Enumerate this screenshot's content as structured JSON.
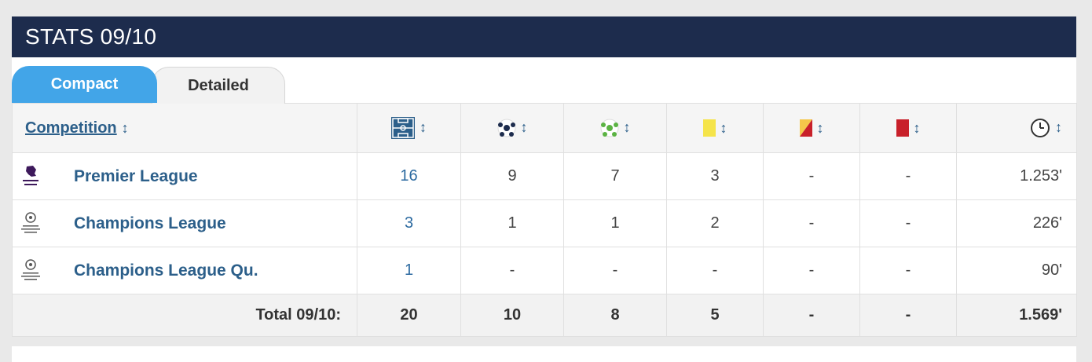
{
  "header": {
    "title": "STATS 09/10"
  },
  "tabs": {
    "compact": "Compact",
    "detailed": "Detailed"
  },
  "columns": {
    "competition": "Competition",
    "icons": [
      "pitch-icon",
      "goal-ball-icon",
      "assist-ball-icon",
      "yellow-card-icon",
      "yellow-red-card-icon",
      "red-card-icon",
      "clock-icon"
    ]
  },
  "rows": [
    {
      "competition": "Premier League",
      "logo": "premier-league-logo",
      "apps": "16",
      "goals": "9",
      "assists": "7",
      "yellow": "3",
      "yellow_red": "-",
      "red": "-",
      "minutes": "1.253'"
    },
    {
      "competition": "Champions League",
      "logo": "champions-league-logo",
      "apps": "3",
      "goals": "1",
      "assists": "1",
      "yellow": "2",
      "yellow_red": "-",
      "red": "-",
      "minutes": "226'"
    },
    {
      "competition": "Champions League Qu.",
      "logo": "champions-league-logo",
      "apps": "1",
      "goals": "-",
      "assists": "-",
      "yellow": "-",
      "yellow_red": "-",
      "red": "-",
      "minutes": "90'"
    }
  ],
  "total": {
    "label": "Total 09/10:",
    "apps": "20",
    "goals": "10",
    "assists": "8",
    "yellow": "5",
    "yellow_red": "-",
    "red": "-",
    "minutes": "1.569'"
  },
  "colors": {
    "header_bg": "#1d2c4d",
    "tab_active": "#42a5e8",
    "link": "#2c5f8a",
    "yellow_card": "#f5e44a",
    "red_card": "#c8202a"
  }
}
